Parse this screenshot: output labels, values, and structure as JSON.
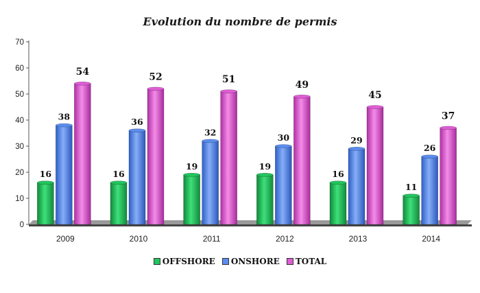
{
  "chart_data": {
    "type": "bar",
    "title": "Evolution du nombre de permis",
    "categories": [
      "2009",
      "2010",
      "2011",
      "2012",
      "2013",
      "2014"
    ],
    "series": [
      {
        "name": "OFFSHORE",
        "values": [
          16,
          16,
          19,
          19,
          16,
          11
        ],
        "color": "#22c55e"
      },
      {
        "name": "ONSHORE",
        "values": [
          38,
          36,
          32,
          30,
          29,
          26
        ],
        "color": "#5b8def"
      },
      {
        "name": "TOTAL",
        "values": [
          54,
          52,
          51,
          49,
          45,
          37
        ],
        "color": "#e05cd6"
      }
    ],
    "ylim": [
      0,
      70
    ],
    "yticks": [
      0,
      10,
      20,
      30,
      40,
      50,
      60,
      70
    ],
    "legend_position": "bottom",
    "grid": false
  }
}
